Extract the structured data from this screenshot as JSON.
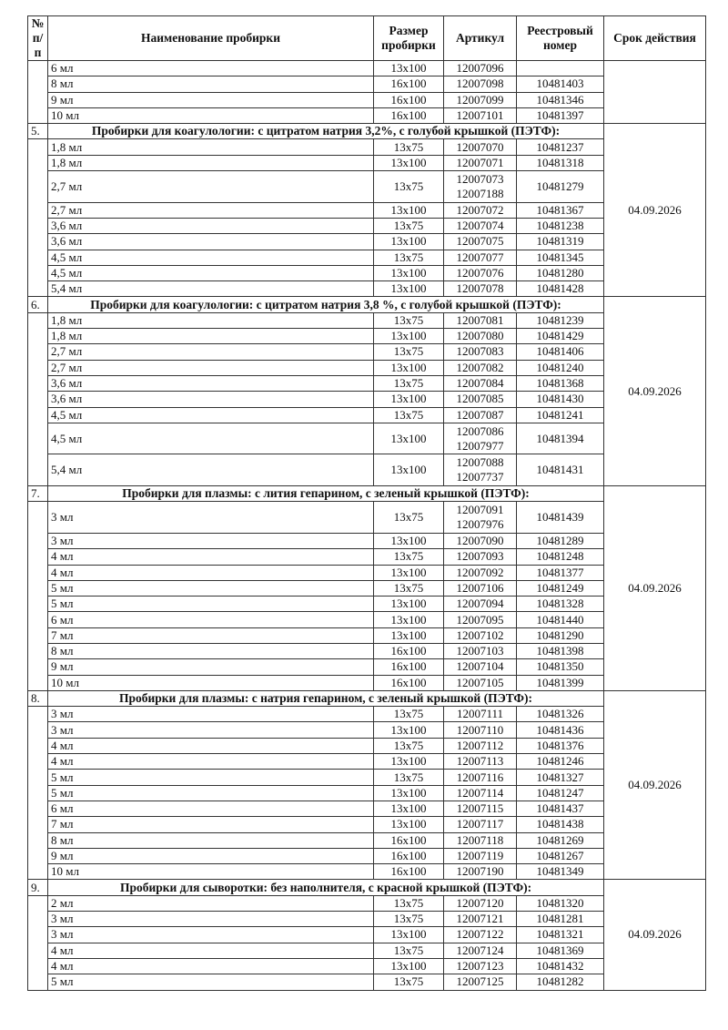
{
  "header": {
    "num": "№ п/п",
    "name": "Наименование пробирки",
    "size": "Размер пробирки",
    "article": "Артикул",
    "reg": "Реестровый номер",
    "expiry": "Срок действия"
  },
  "sections": [
    {
      "num": "",
      "title": "",
      "expiry": "",
      "rows": [
        {
          "name": "6 мл",
          "size": "13x100",
          "article": [
            "12007096"
          ],
          "reg": ""
        },
        {
          "name": "8 мл",
          "size": "16x100",
          "article": [
            "12007098"
          ],
          "reg": "10481403"
        },
        {
          "name": "9 мл",
          "size": "16x100",
          "article": [
            "12007099"
          ],
          "reg": "10481346"
        },
        {
          "name": "10 мл",
          "size": "16x100",
          "article": [
            "12007101"
          ],
          "reg": "10481397"
        }
      ]
    },
    {
      "num": "5.",
      "title": "Пробирки для коагулологии: с цитратом натрия 3,2%, с голубой крышкой (ПЭТФ):",
      "expiry": "04.09.2026",
      "rows": [
        {
          "name": "1,8 мл",
          "size": "13x75",
          "article": [
            "12007070"
          ],
          "reg": "10481237"
        },
        {
          "name": "1,8 мл",
          "size": "13x100",
          "article": [
            "12007071"
          ],
          "reg": "10481318"
        },
        {
          "name": "2,7 мл",
          "size": "13x75",
          "article": [
            "12007073",
            "12007188"
          ],
          "reg": "10481279"
        },
        {
          "name": "2,7 мл",
          "size": "13x100",
          "article": [
            "12007072"
          ],
          "reg": "10481367"
        },
        {
          "name": "3,6 мл",
          "size": "13x75",
          "article": [
            "12007074"
          ],
          "reg": "10481238"
        },
        {
          "name": "3,6 мл",
          "size": "13x100",
          "article": [
            "12007075"
          ],
          "reg": "10481319"
        },
        {
          "name": "4,5 мл",
          "size": "13x75",
          "article": [
            "12007077"
          ],
          "reg": "10481345"
        },
        {
          "name": "4,5 мл",
          "size": "13x100",
          "article": [
            "12007076"
          ],
          "reg": "10481280"
        },
        {
          "name": "5,4 мл",
          "size": "13x100",
          "article": [
            "12007078"
          ],
          "reg": "10481428"
        }
      ]
    },
    {
      "num": "6.",
      "title": "Пробирки для коагулологии: с цитратом натрия 3,8 %, с голубой крышкой (ПЭТФ):",
      "expiry": "04.09.2026",
      "rows": [
        {
          "name": "1,8 мл",
          "size": "13x75",
          "article": [
            "12007081"
          ],
          "reg": "10481239"
        },
        {
          "name": "1,8 мл",
          "size": "13x100",
          "article": [
            "12007080"
          ],
          "reg": "10481429"
        },
        {
          "name": "2,7 мл",
          "size": "13x75",
          "article": [
            "12007083"
          ],
          "reg": "10481406"
        },
        {
          "name": "2,7 мл",
          "size": "13x100",
          "article": [
            "12007082"
          ],
          "reg": "10481240"
        },
        {
          "name": "3,6 мл",
          "size": "13x75",
          "article": [
            "12007084"
          ],
          "reg": "10481368"
        },
        {
          "name": "3,6 мл",
          "size": "13x100",
          "article": [
            "12007085"
          ],
          "reg": "10481430"
        },
        {
          "name": "4,5 мл",
          "size": "13x75",
          "article": [
            "12007087"
          ],
          "reg": "10481241"
        },
        {
          "name": "4,5 мл",
          "size": "13x100",
          "article": [
            "12007086",
            "12007977"
          ],
          "reg": "10481394"
        },
        {
          "name": "5,4 мл",
          "size": "13x100",
          "article": [
            "12007088",
            "12007737"
          ],
          "reg": "10481431"
        }
      ]
    },
    {
      "num": "7.",
      "title": "Пробирки для плазмы: с лития гепарином, с зеленый крышкой (ПЭТФ):",
      "expiry": "04.09.2026",
      "rows": [
        {
          "name": "3 мл",
          "size": "13x75",
          "article": [
            "12007091",
            "12007976"
          ],
          "reg": "10481439"
        },
        {
          "name": "3 мл",
          "size": "13x100",
          "article": [
            "12007090"
          ],
          "reg": "10481289"
        },
        {
          "name": "4 мл",
          "size": "13x75",
          "article": [
            "12007093"
          ],
          "reg": "10481248"
        },
        {
          "name": "4 мл",
          "size": "13x100",
          "article": [
            "12007092"
          ],
          "reg": "10481377"
        },
        {
          "name": "5 мл",
          "size": "13x75",
          "article": [
            "12007106"
          ],
          "reg": "10481249"
        },
        {
          "name": "5 мл",
          "size": "13x100",
          "article": [
            "12007094"
          ],
          "reg": "10481328"
        },
        {
          "name": "6 мл",
          "size": "13x100",
          "article": [
            "12007095"
          ],
          "reg": "10481440"
        },
        {
          "name": "7 мл",
          "size": "13x100",
          "article": [
            "12007102"
          ],
          "reg": "10481290"
        },
        {
          "name": "8 мл",
          "size": "16x100",
          "article": [
            "12007103"
          ],
          "reg": "10481398"
        },
        {
          "name": "9 мл",
          "size": "16x100",
          "article": [
            "12007104"
          ],
          "reg": "10481350"
        },
        {
          "name": "10 мл",
          "size": "16x100",
          "article": [
            "12007105"
          ],
          "reg": "10481399"
        }
      ]
    },
    {
      "num": "8.",
      "title": "Пробирки для плазмы: с натрия гепарином, с зеленый крышкой (ПЭТФ):",
      "expiry": "04.09.2026",
      "rows": [
        {
          "name": "3 мл",
          "size": "13x75",
          "article": [
            "12007111"
          ],
          "reg": "10481326"
        },
        {
          "name": "3 мл",
          "size": "13x100",
          "article": [
            "12007110"
          ],
          "reg": "10481436"
        },
        {
          "name": "4 мл",
          "size": "13x75",
          "article": [
            "12007112"
          ],
          "reg": "10481376"
        },
        {
          "name": "4 мл",
          "size": "13x100",
          "article": [
            "12007113"
          ],
          "reg": "10481246"
        },
        {
          "name": "5 мл",
          "size": "13x75",
          "article": [
            "12007116"
          ],
          "reg": "10481327"
        },
        {
          "name": "5 мл",
          "size": "13x100",
          "article": [
            "12007114"
          ],
          "reg": "10481247"
        },
        {
          "name": "6 мл",
          "size": "13x100",
          "article": [
            "12007115"
          ],
          "reg": "10481437"
        },
        {
          "name": "7 мл",
          "size": "13x100",
          "article": [
            "12007117"
          ],
          "reg": "10481438"
        },
        {
          "name": "8 мл",
          "size": "16x100",
          "article": [
            "12007118"
          ],
          "reg": "10481269"
        },
        {
          "name": "9 мл",
          "size": "16x100",
          "article": [
            "12007119"
          ],
          "reg": "10481267"
        },
        {
          "name": "10 мл",
          "size": "16x100",
          "article": [
            "12007190"
          ],
          "reg": "10481349"
        }
      ]
    },
    {
      "num": "9.",
      "title": "Пробирки для сыворотки: без наполнителя, с красной крышкой (ПЭТФ):",
      "expiry": "04.09.2026",
      "rows": [
        {
          "name": "2 мл",
          "size": "13x75",
          "article": [
            "12007120"
          ],
          "reg": "10481320"
        },
        {
          "name": "3 мл",
          "size": "13x75",
          "article": [
            "12007121"
          ],
          "reg": "10481281"
        },
        {
          "name": "3 мл",
          "size": "13x100",
          "article": [
            "12007122"
          ],
          "reg": "10481321"
        },
        {
          "name": "4 мл",
          "size": "13x75",
          "article": [
            "12007124"
          ],
          "reg": "10481369"
        },
        {
          "name": "4 мл",
          "size": "13x100",
          "article": [
            "12007123"
          ],
          "reg": "10481432"
        },
        {
          "name": "5 мл",
          "size": "13x75",
          "article": [
            "12007125"
          ],
          "reg": "10481282"
        }
      ]
    }
  ]
}
